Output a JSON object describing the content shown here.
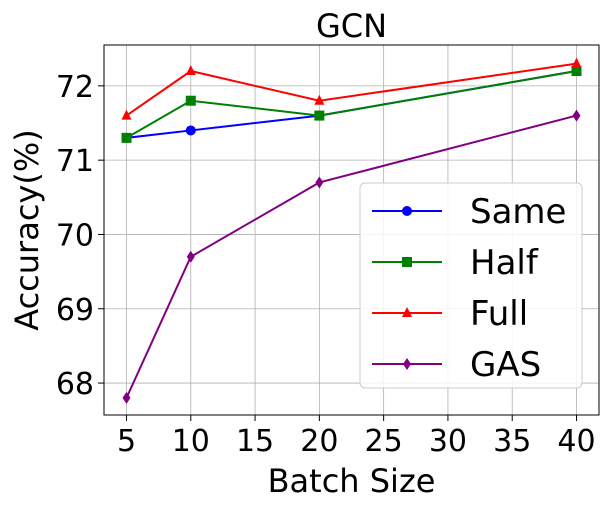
{
  "chart_data": {
    "type": "line",
    "title": "GCN",
    "xlabel": "Batch Size",
    "ylabel": "Accuracy(%)",
    "xlim": [
      3.25,
      41.75
    ],
    "ylim": [
      67.57,
      72.55
    ],
    "xticks": [
      5,
      10,
      15,
      20,
      25,
      30,
      35,
      40
    ],
    "yticks": [
      68,
      69,
      70,
      71,
      72
    ],
    "grid": true,
    "legend_position": "lower-right",
    "x": [
      5,
      10,
      20,
      40
    ],
    "series": [
      {
        "name": "Same",
        "color": "#0000ff",
        "marker": "circle",
        "values": [
          71.3,
          71.4,
          71.6,
          72.2
        ]
      },
      {
        "name": "Half",
        "color": "#008000",
        "marker": "square",
        "values": [
          71.3,
          71.8,
          71.6,
          72.2
        ]
      },
      {
        "name": "Full",
        "color": "#ff0000",
        "marker": "triangle",
        "values": [
          71.6,
          72.2,
          71.8,
          72.3
        ]
      },
      {
        "name": "GAS",
        "color": "#800080",
        "marker": "diamond",
        "values": [
          67.8,
          69.7,
          70.7,
          71.6
        ]
      }
    ]
  }
}
